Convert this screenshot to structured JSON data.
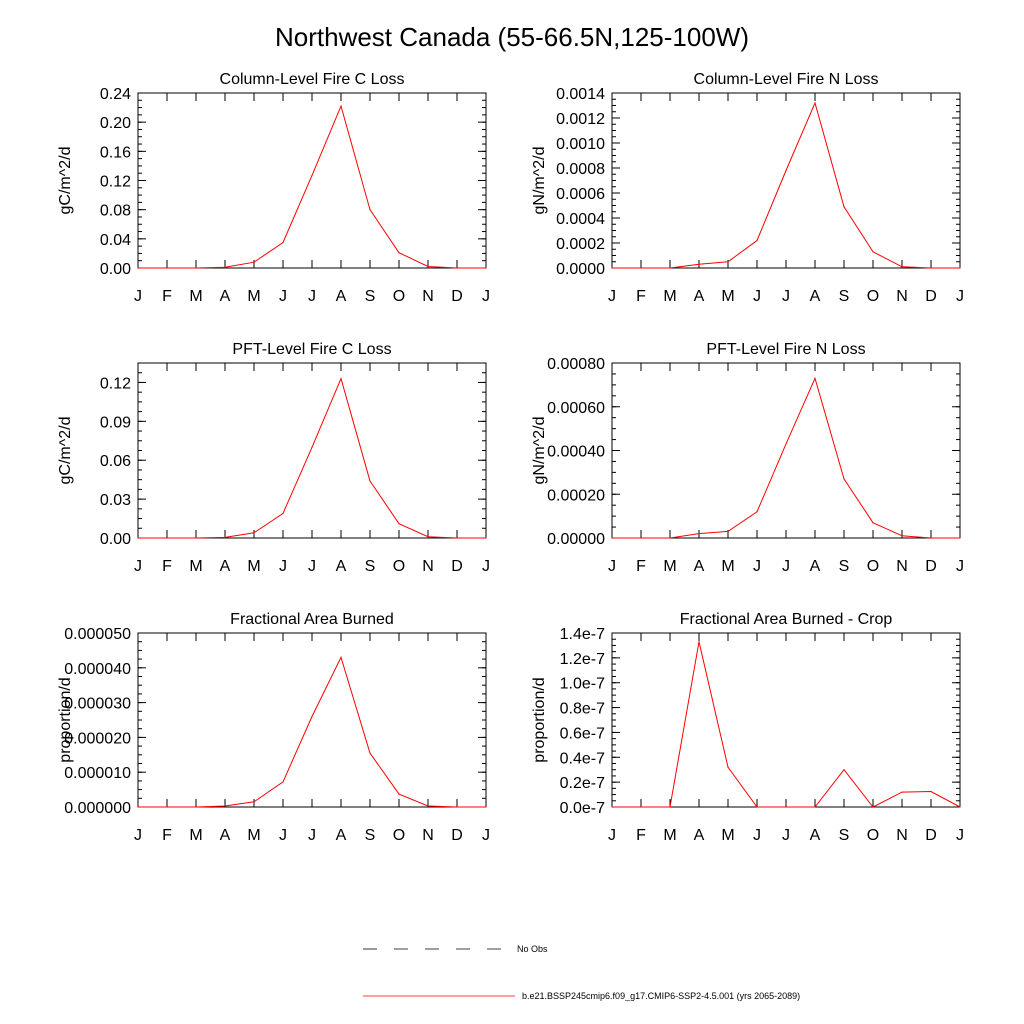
{
  "title": "Northwest Canada (55-66.5N,125-100W)",
  "months": [
    "J",
    "F",
    "M",
    "A",
    "M",
    "J",
    "J",
    "A",
    "S",
    "O",
    "N",
    "D",
    "J"
  ],
  "series_color": "#ff0000",
  "chart_data": [
    {
      "type": "line",
      "title": "Column-Level Fire C Loss",
      "ylabel": "gC/m^2/d",
      "ylim": [
        0,
        0.24
      ],
      "yticks": [
        0,
        0.04,
        0.08,
        0.12,
        0.16,
        0.2,
        0.24
      ],
      "ytick_labels": [
        "0.00",
        "0.04",
        "0.08",
        "0.12",
        "0.16",
        "0.20",
        "0.24"
      ],
      "values": [
        0,
        0,
        0,
        0.001,
        0.008,
        0.035,
        0.127,
        0.222,
        0.08,
        0.021,
        0.002,
        0,
        0
      ]
    },
    {
      "type": "line",
      "title": "Column-Level Fire N Loss",
      "ylabel": "gN/m^2/d",
      "ylim": [
        0,
        0.0014
      ],
      "yticks": [
        0,
        0.0002,
        0.0004,
        0.0006,
        0.0008,
        0.001,
        0.0012,
        0.0014
      ],
      "ytick_labels": [
        "0.0000",
        "0.0002",
        "0.0004",
        "0.0006",
        "0.0008",
        "0.0010",
        "0.0012",
        "0.0014"
      ],
      "values": [
        0,
        0,
        0,
        3e-05,
        5e-05,
        0.00022,
        0.00078,
        0.00132,
        0.00049,
        0.00013,
        1e-05,
        0,
        0
      ]
    },
    {
      "type": "line",
      "title": "PFT-Level Fire C Loss",
      "ylabel": "gC/m^2/d",
      "ylim": [
        0,
        0.135
      ],
      "yticks": [
        0,
        0.03,
        0.06,
        0.09,
        0.12
      ],
      "ytick_labels": [
        "0.00",
        "0.03",
        "0.06",
        "0.09",
        "0.12"
      ],
      "values": [
        0,
        0,
        0,
        0.0005,
        0.004,
        0.019,
        0.07,
        0.123,
        0.044,
        0.011,
        0.001,
        0,
        0
      ]
    },
    {
      "type": "line",
      "title": "PFT-Level Fire N Loss",
      "ylabel": "gN/m^2/d",
      "ylim": [
        0,
        0.0008
      ],
      "yticks": [
        0,
        0.0002,
        0.0004,
        0.0006,
        0.0008
      ],
      "ytick_labels": [
        "0.00000",
        "0.00020",
        "0.00040",
        "0.00060",
        "0.00080"
      ],
      "values": [
        0,
        0,
        0,
        2e-05,
        3e-05,
        0.00012,
        0.00043,
        0.00073,
        0.00027,
        7e-05,
        1e-05,
        0,
        0
      ]
    },
    {
      "type": "line",
      "title": "Fractional Area Burned",
      "ylabel": "proportion/d",
      "ylim": [
        0,
        5e-05
      ],
      "yticks": [
        0,
        1e-05,
        2e-05,
        3e-05,
        4e-05,
        5e-05
      ],
      "ytick_labels": [
        "0.000000",
        "0.000010",
        "0.000020",
        "0.000030",
        "0.000040",
        "0.000050"
      ],
      "values": [
        0,
        0,
        0,
        3e-07,
        1.5e-06,
        7.2e-06,
        2.6e-05,
        4.3e-05,
        1.55e-05,
        3.7e-06,
        3e-07,
        0,
        0
      ]
    },
    {
      "type": "line",
      "title": "Fractional Area Burned - Crop",
      "ylabel": "proportion/d",
      "ylim": [
        0,
        1.4e-07
      ],
      "yticks": [
        0,
        2e-08,
        4e-08,
        6e-08,
        8e-08,
        1e-07,
        1.2e-07,
        1.4e-07
      ],
      "ytick_labels": [
        "0.0e-7",
        "0.2e-7",
        "0.4e-7",
        "0.6e-7",
        "0.8e-7",
        "1.0e-7",
        "1.2e-7",
        "1.4e-7"
      ],
      "values": [
        0,
        0,
        0,
        1.33e-07,
        3.2e-08,
        0,
        0,
        0,
        3e-08,
        0,
        1.2e-08,
        1.25e-08,
        0
      ]
    }
  ],
  "legend": {
    "obs_label": "No Obs",
    "model_label": "b.e21.BSSP245cmip6.f09_g17.CMIP6-SSP2-4.5.001 (yrs 2065-2089)"
  }
}
